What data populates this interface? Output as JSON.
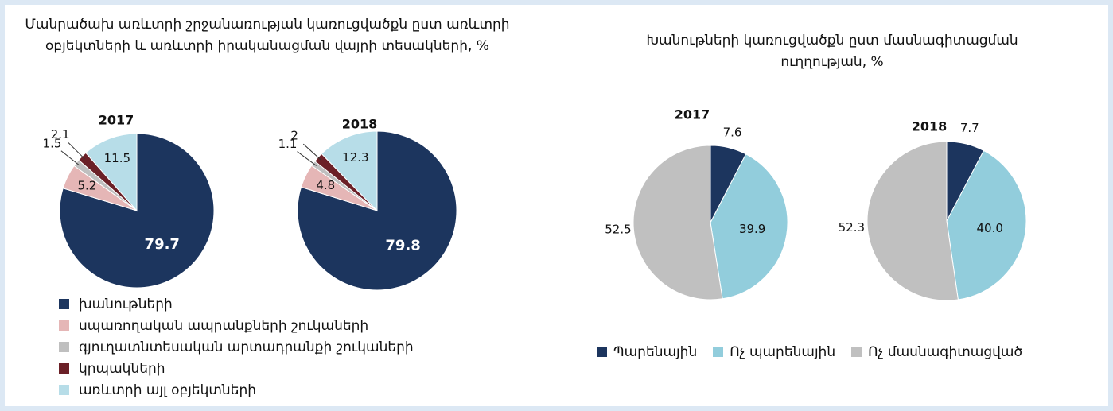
{
  "chart_data": [
    {
      "type": "pie",
      "title": "Մանրածախ առևտրի շրջանառության կառուցվածքն ըստ առևտրի օբյեկտների և առևտրի իրականացման վայրի տեսակների, %",
      "categories": [
        "խանութների",
        "սպառողական ապրանքների շուկաների",
        "գյուղատնտեսական արտադրանքի  շուկաների",
        "կրպակների",
        "առևտրի այլ օբյեկտների"
      ],
      "colors": [
        "#1c355e",
        "#e5b6b6",
        "#bfbfbf",
        "#6b2027",
        "#b7dde8"
      ],
      "pies": [
        {
          "name": "2017",
          "values": [
            79.7,
            5.2,
            1.5,
            2.1,
            11.5
          ]
        },
        {
          "name": "2018",
          "values": [
            79.8,
            4.8,
            1.1,
            2.0,
            12.3
          ]
        }
      ]
    },
    {
      "type": "pie",
      "title": "Խանութների կառուցվածքն ըստ մասնագիտացման ուղղության, %",
      "categories": [
        "Պարենային",
        "Ոչ պարենային",
        "Ոչ մասնագիտացված"
      ],
      "colors": [
        "#1c355e",
        "#92cddc",
        "#c0c0c0"
      ],
      "pies": [
        {
          "name": "2017",
          "values": [
            7.6,
            39.9,
            52.5
          ]
        },
        {
          "name": "2018",
          "values": [
            7.7,
            40,
            52.3
          ],
          "value_labels": [
            "7.7",
            "40.0",
            "52.3"
          ]
        }
      ]
    }
  ]
}
